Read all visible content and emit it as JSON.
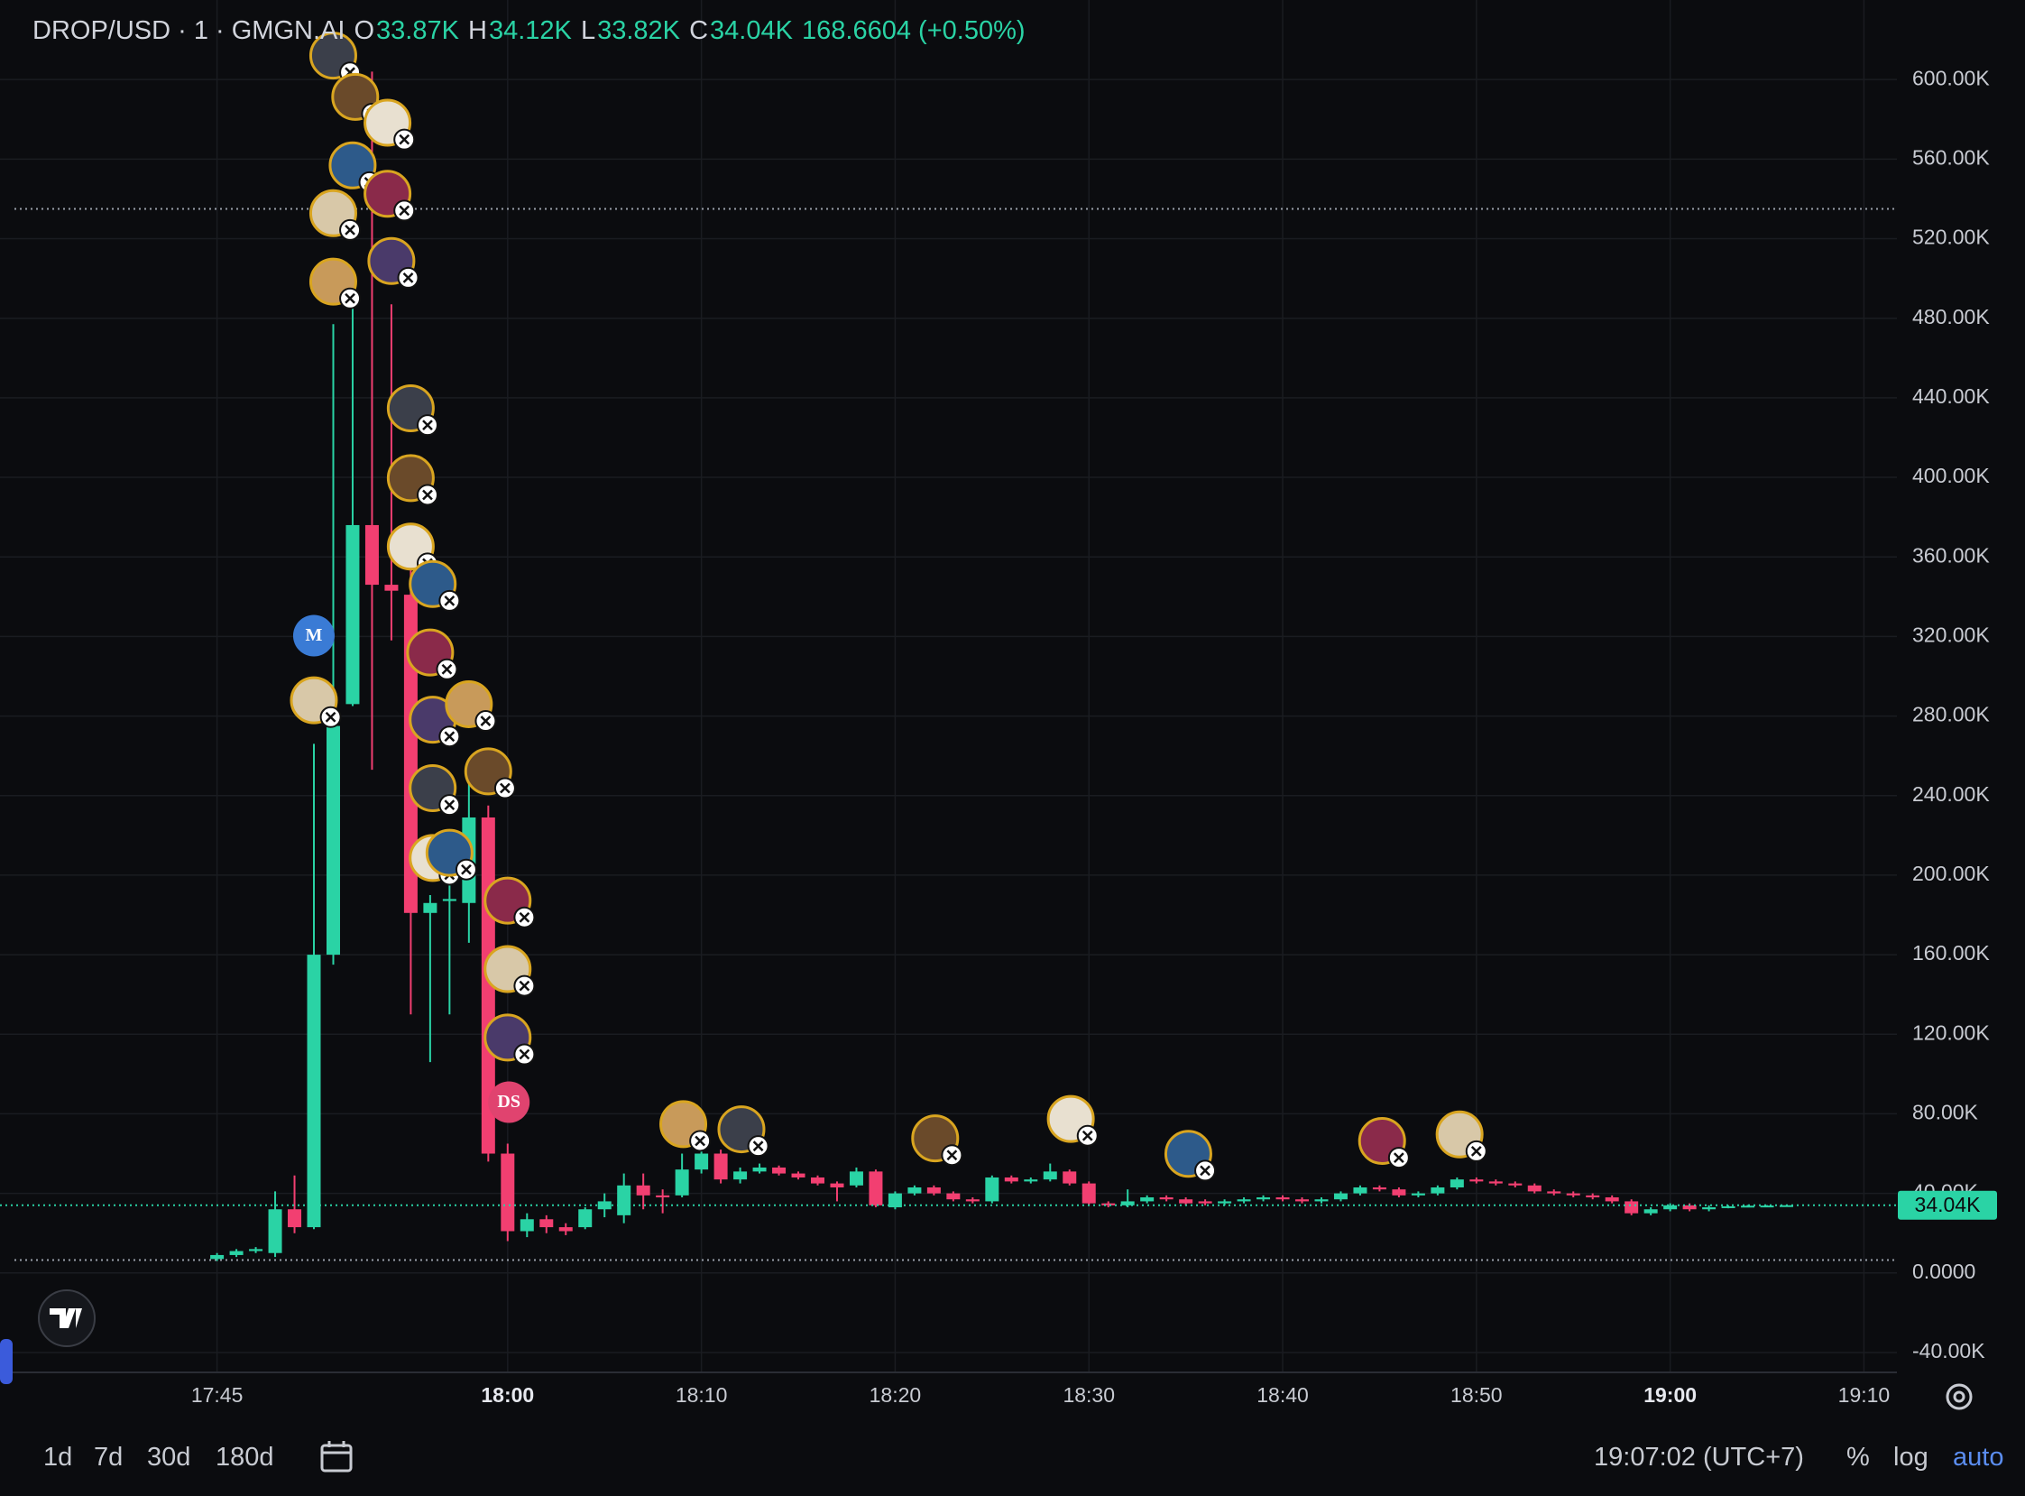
{
  "chart_data": {
    "type": "candlestick",
    "header": {
      "symbol": "DROP/USD · 1 · GMGN.AI",
      "o_key": "O",
      "o": "33.87K",
      "h_key": "H",
      "h": "34.12K",
      "l_key": "L",
      "l": "33.82K",
      "c_key": "C",
      "c": "34.04K",
      "change": "168.6604 (+0.50%)"
    },
    "x": [
      "17:45",
      "17:46",
      "17:47",
      "17:48",
      "17:49",
      "17:50",
      "17:51",
      "17:52",
      "17:53",
      "17:54",
      "17:55",
      "17:56",
      "17:57",
      "17:58",
      "17:59",
      "18:00",
      "18:01",
      "18:02",
      "18:03",
      "18:04",
      "18:05",
      "18:06",
      "18:07",
      "18:08",
      "18:09",
      "18:10",
      "18:11",
      "18:12",
      "18:13",
      "18:14",
      "18:15",
      "18:16",
      "18:17",
      "18:18",
      "18:19",
      "18:20",
      "18:21",
      "18:22",
      "18:23",
      "18:24",
      "18:25",
      "18:26",
      "18:27",
      "18:28",
      "18:29",
      "18:30",
      "18:31",
      "18:32",
      "18:33",
      "18:34",
      "18:35",
      "18:36",
      "18:37",
      "18:38",
      "18:39",
      "18:40",
      "18:41",
      "18:42",
      "18:43",
      "18:44",
      "18:45",
      "18:46",
      "18:47",
      "18:48",
      "18:49",
      "18:50",
      "18:51",
      "18:52",
      "18:53",
      "18:54",
      "18:55",
      "18:56",
      "18:57",
      "18:58",
      "18:59",
      "19:00",
      "19:01",
      "19:02",
      "19:03",
      "19:04",
      "19:05",
      "19:06"
    ],
    "open": [
      7000,
      9000,
      11000,
      10000,
      32000,
      23000,
      160000,
      286000,
      376000,
      346000,
      341000,
      181000,
      187000,
      186000,
      229000,
      60000,
      21000,
      27000,
      23000,
      23000,
      32000,
      29000,
      44000,
      39000,
      39000,
      52000,
      60000,
      47000,
      51000,
      53000,
      50000,
      48000,
      45000,
      44000,
      51000,
      33000,
      40000,
      43000,
      40000,
      37000,
      36000,
      48000,
      46000,
      47000,
      51000,
      45000,
      35000,
      34000,
      36000,
      38000,
      37000,
      36000,
      35000,
      36000,
      37000,
      38000,
      37000,
      36000,
      37000,
      40000,
      43000,
      42000,
      39000,
      40000,
      43000,
      47000,
      46000,
      45000,
      44000,
      41000,
      40000,
      39000,
      38000,
      36000,
      30000,
      32000,
      34000,
      32000,
      33000,
      33500,
      33800,
      33870
    ],
    "high": [
      10000,
      12000,
      13000,
      41000,
      49000,
      266000,
      477000,
      490000,
      604000,
      487000,
      373000,
      190000,
      220000,
      250000,
      235000,
      65000,
      30000,
      29000,
      25000,
      33000,
      40000,
      50000,
      50000,
      42000,
      60000,
      65000,
      62000,
      53000,
      55000,
      54000,
      51000,
      49000,
      46000,
      53000,
      52000,
      41000,
      44000,
      44000,
      41000,
      38000,
      49000,
      49000,
      48000,
      55000,
      52000,
      46000,
      36000,
      42000,
      39000,
      39000,
      38000,
      37000,
      37000,
      38000,
      39000,
      39000,
      38000,
      38000,
      41000,
      44000,
      44000,
      43000,
      41000,
      44000,
      48000,
      48000,
      47000,
      46000,
      45000,
      42000,
      41000,
      40000,
      39000,
      37000,
      33000,
      35000,
      35000,
      34000,
      34000,
      34200,
      34100,
      34120
    ],
    "low": [
      6000,
      8000,
      10000,
      8000,
      20000,
      22000,
      155000,
      285000,
      253000,
      318000,
      130000,
      106000,
      130000,
      166000,
      56000,
      16000,
      18000,
      20000,
      19000,
      22000,
      28000,
      25000,
      32000,
      30000,
      38000,
      50000,
      45000,
      45000,
      50000,
      49000,
      47000,
      44000,
      36000,
      43000,
      33000,
      32000,
      39000,
      39000,
      36000,
      35000,
      35000,
      45000,
      45000,
      46000,
      44000,
      34000,
      33000,
      33000,
      35000,
      36000,
      34000,
      34000,
      34000,
      35000,
      36000,
      36000,
      35000,
      35000,
      36000,
      39000,
      41000,
      38000,
      38000,
      39000,
      42000,
      45000,
      44000,
      43000,
      40000,
      39000,
      38000,
      37000,
      35000,
      29000,
      29000,
      31000,
      31000,
      31000,
      32500,
      33000,
      33500,
      33820
    ],
    "close": [
      9000,
      11000,
      12000,
      32000,
      23000,
      160000,
      275000,
      376000,
      346000,
      343000,
      181000,
      186000,
      188000,
      229000,
      60000,
      21000,
      27000,
      23000,
      21000,
      32000,
      36000,
      44000,
      39000,
      38000,
      52000,
      60000,
      47000,
      51000,
      53000,
      50000,
      48000,
      45000,
      43000,
      51000,
      34000,
      40000,
      43000,
      40000,
      37000,
      36000,
      48000,
      46000,
      47000,
      51000,
      45000,
      35000,
      34000,
      36000,
      38000,
      37000,
      35000,
      35000,
      36000,
      37000,
      38000,
      37000,
      36000,
      37000,
      40000,
      43000,
      42000,
      39000,
      40000,
      43000,
      47000,
      46000,
      45000,
      44000,
      41000,
      40000,
      39000,
      38000,
      36000,
      30000,
      32000,
      34000,
      32000,
      33000,
      33500,
      33800,
      33870,
      34040
    ],
    "up_color": "#2ad3a5",
    "down_color": "#f23f71",
    "xlim": [
      "17:35",
      "19:12"
    ],
    "xticks": [
      "17:45",
      "18:00",
      "18:10",
      "18:20",
      "18:30",
      "18:40",
      "18:50",
      "19:00",
      "19:10"
    ],
    "ylim": [
      -50000,
      640000
    ],
    "yticks": [
      {
        "value": -40000,
        "label": "-40.00K"
      },
      {
        "value": 0,
        "label": "0.0000"
      },
      {
        "value": 40000,
        "label": "40.00K"
      },
      {
        "value": 80000,
        "label": "80.00K"
      },
      {
        "value": 120000,
        "label": "120.00K"
      },
      {
        "value": 160000,
        "label": "160.00K"
      },
      {
        "value": 200000,
        "label": "200.00K"
      },
      {
        "value": 240000,
        "label": "240.00K"
      },
      {
        "value": 280000,
        "label": "280.00K"
      },
      {
        "value": 320000,
        "label": "320.00K"
      },
      {
        "value": 360000,
        "label": "360.00K"
      },
      {
        "value": 400000,
        "label": "400.00K"
      },
      {
        "value": 440000,
        "label": "440.00K"
      },
      {
        "value": 480000,
        "label": "480.00K"
      },
      {
        "value": 520000,
        "label": "520.00K"
      },
      {
        "value": 560000,
        "label": "560.00K"
      },
      {
        "value": 600000,
        "label": "600.00K"
      }
    ],
    "grid": true,
    "hlines": [
      535000,
      6500
    ],
    "last_price": {
      "value": 34040,
      "label": "34.04K"
    },
    "markers": [
      {
        "label": "M",
        "color": "#3a7bd5"
      },
      {
        "label": "DS",
        "color": "#e0436f"
      }
    ]
  },
  "toolbar": {
    "ranges": [
      "1d",
      "7d",
      "30d",
      "180d"
    ],
    "clock": "19:07:02 (UTC+7)",
    "percent": "%",
    "log": "log",
    "auto": "auto"
  }
}
